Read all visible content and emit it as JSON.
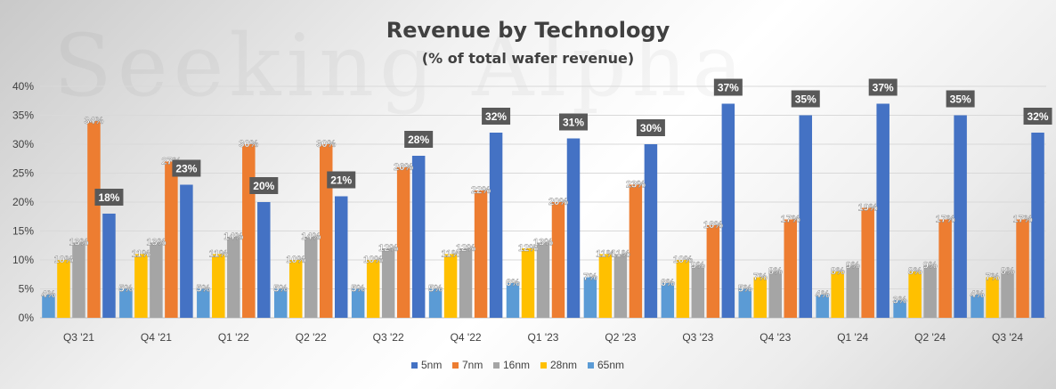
{
  "chart_data": {
    "type": "bar",
    "title": "Revenue by Technology",
    "subtitle": "(% of total wafer revenue)",
    "watermark": "Seeking Alpha",
    "xlabel": "",
    "ylabel": "",
    "ylim": [
      0,
      40
    ],
    "y_ticks": [
      "0%",
      "5%",
      "10%",
      "15%",
      "20%",
      "25%",
      "30%",
      "35%",
      "40%"
    ],
    "grid": true,
    "legend_position": "bottom",
    "categories": [
      "Q3 '21",
      "Q4 '21",
      "Q1 '22",
      "Q2 '22",
      "Q3 '22",
      "Q4 '22",
      "Q1 '23",
      "Q2 '23",
      "Q3 '23",
      "Q4 '23",
      "Q1 '24",
      "Q2 '24",
      "Q3 '24"
    ],
    "bar_order": [
      "65nm",
      "28nm",
      "16nm",
      "7nm",
      "5nm"
    ],
    "series": [
      {
        "name": "5nm",
        "color": "#4472C4",
        "values": [
          18,
          23,
          20,
          21,
          28,
          32,
          31,
          30,
          37,
          35,
          37,
          35,
          32
        ]
      },
      {
        "name": "7nm",
        "color": "#ED7D31",
        "values": [
          34,
          27,
          30,
          30,
          26,
          22,
          20,
          23,
          16,
          17,
          19,
          17,
          17
        ]
      },
      {
        "name": "16nm",
        "color": "#A5A5A5",
        "values": [
          13,
          13,
          14,
          14,
          12,
          12,
          13,
          11,
          9,
          8,
          9,
          9,
          8
        ]
      },
      {
        "name": "28nm",
        "color": "#FFC000",
        "values": [
          10,
          11,
          11,
          10,
          10,
          11,
          12,
          11,
          10,
          7,
          8,
          8,
          7
        ]
      },
      {
        "name": "65nm",
        "color": "#5B9BD5",
        "values": [
          4,
          5,
          5,
          5,
          5,
          5,
          6,
          7,
          6,
          5,
          4,
          3,
          4
        ]
      }
    ]
  }
}
